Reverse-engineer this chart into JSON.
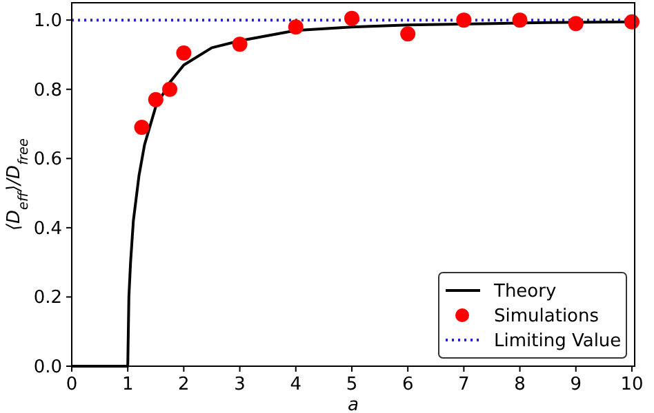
{
  "chart_data": {
    "type": "line",
    "xlabel": "a",
    "ylabel": "⟨D$_{eff}$⟩/D$_{free}$",
    "xlim": [
      0,
      10.05
    ],
    "ylim": [
      0,
      1.05
    ],
    "xticks": [
      0,
      1,
      2,
      3,
      4,
      5,
      6,
      7,
      8,
      9,
      10
    ],
    "yticks": [
      {
        "value": 0,
        "label": "0.0"
      },
      {
        "value": 0.2,
        "label": "0.2"
      },
      {
        "value": 0.4,
        "label": "0.4"
      },
      {
        "value": 0.6,
        "label": "0.6"
      },
      {
        "value": 0.8,
        "label": "0.8"
      },
      {
        "value": 1,
        "label": "1.0"
      }
    ],
    "series": [
      {
        "name": "Theory",
        "color": "#000000",
        "marker": "none",
        "line_style": "solid",
        "x": [
          0,
          1,
          1.02,
          1.05,
          1.1,
          1.2,
          1.3,
          1.5,
          1.75,
          2,
          2.5,
          3,
          4,
          5,
          6,
          7.5,
          8.5,
          10
        ],
        "values": [
          0,
          0,
          0.2,
          0.3,
          0.42,
          0.55,
          0.64,
          0.75,
          0.82,
          0.87,
          0.92,
          0.94,
          0.97,
          0.98,
          0.986,
          0.99,
          0.993,
          0.995
        ]
      },
      {
        "name": "Simulations",
        "type": "scatter",
        "color": "#ff0000",
        "marker": "circle",
        "x": [
          1.25,
          1.5,
          1.75,
          2,
          3,
          4,
          5,
          6,
          7,
          8,
          9,
          10
        ],
        "values": [
          0.69,
          0.77,
          0.8,
          0.905,
          0.93,
          0.98,
          1.005,
          0.96,
          1.0,
          1.0,
          0.99,
          0.995
        ]
      }
    ],
    "ref_lines": [
      {
        "axis": "y",
        "value": 1,
        "label": "Limiting Value",
        "color": "#2222dd",
        "line_style": "dotted"
      }
    ],
    "legend": "bottom right",
    "grid": false
  }
}
